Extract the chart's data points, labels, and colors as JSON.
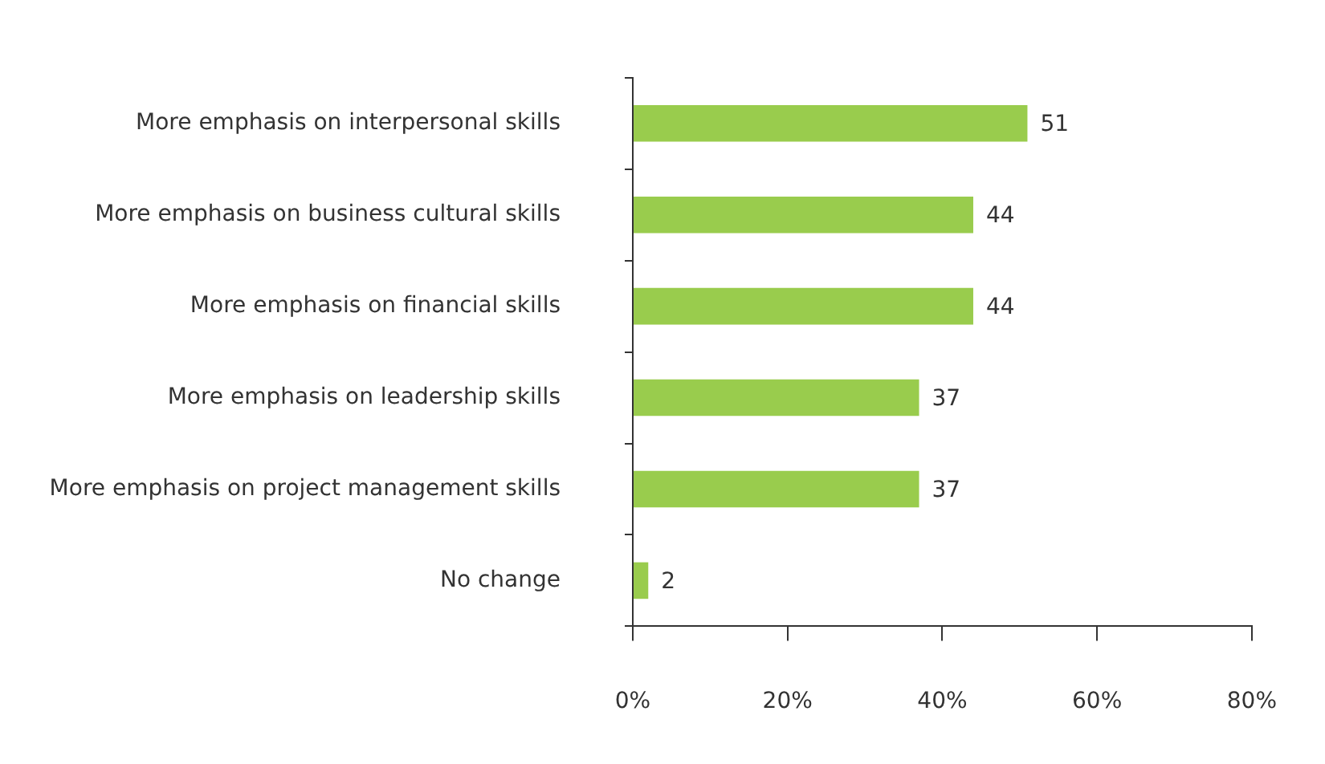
{
  "chart_data": {
    "type": "bar",
    "orientation": "horizontal",
    "categories": [
      "More emphasis on interpersonal skills",
      "More emphasis on business cultural skills",
      "More emphasis on financial skills",
      "More emphasis on leadership skills",
      "More emphasis on project management skills",
      "No change"
    ],
    "values": [
      51,
      44,
      44,
      37,
      37,
      2
    ],
    "color": "#99cc4d",
    "xlim": [
      0,
      80
    ],
    "xticks": [
      {
        "value": 0,
        "label": "0%"
      },
      {
        "value": 20,
        "label": "20%"
      },
      {
        "value": 40,
        "label": "40%"
      },
      {
        "value": 60,
        "label": "60%"
      },
      {
        "value": 80,
        "label": "80%"
      }
    ],
    "data_labels": true,
    "grid": false,
    "legend": false
  }
}
